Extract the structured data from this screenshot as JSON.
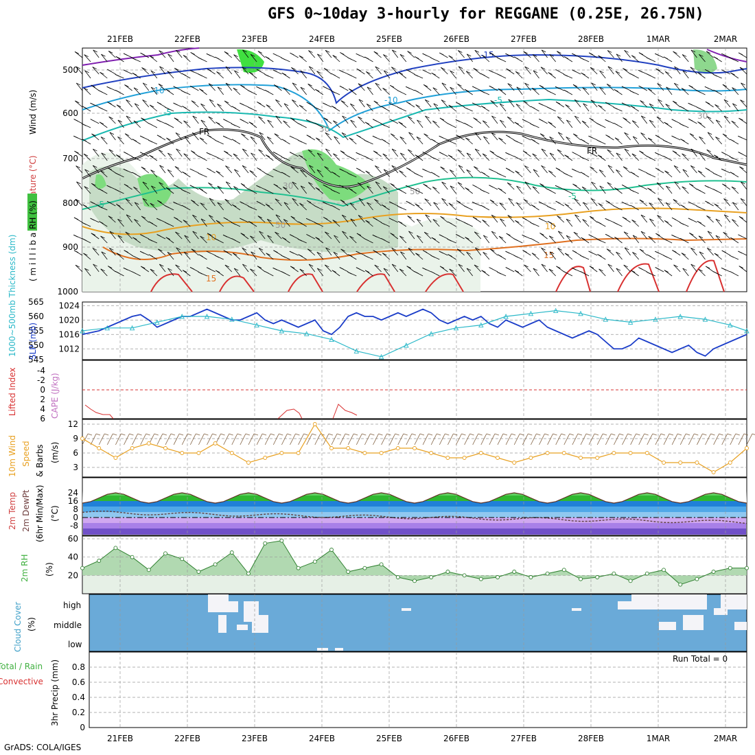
{
  "title": "GFS 0~10day 3-hourly for REGGANE (0.25E, 26.75N)",
  "credit": "GrADS: COLA/IGES",
  "colors": {
    "rh_green": "#7ddc7d",
    "temp_orange": "#e8a020",
    "slp_blue": "#1a3cc8",
    "thickness_cyan": "#2ab8c8",
    "cape_purple": "#c070c0",
    "li_red": "#d83030",
    "wind_orange": "#e8a020",
    "cloud_blue": "#6aaad8",
    "rh2m_green": "#40b040"
  },
  "dates": [
    "21FEB",
    "22FEB",
    "23FEB",
    "24FEB",
    "25FEB",
    "26FEB",
    "27FEB",
    "28FEB",
    "1MAR",
    "2MAR"
  ],
  "panels": {
    "upper": {
      "ylabel_wind": "Wind (m/s)",
      "ylabel_temp": "Temperature (°C)",
      "ylabel_rh": "RH (%)",
      "ylabel_mb": "( m i l l i b a r s )",
      "levels": [
        "500",
        "600",
        "700",
        "800",
        "900",
        "1000"
      ],
      "contour_labels": [
        "-15",
        "-10",
        "-10",
        "-5",
        "-5",
        "FR",
        "FR",
        "-5",
        "-5",
        "5",
        "10",
        "10",
        "15",
        "15",
        "30",
        "30",
        "50",
        "50",
        "30"
      ]
    },
    "slp": {
      "ylabel_thk": "1000~500mb Thickness (dm)",
      "ylabel_slp": "SLP (mb)",
      "thk_ticks": [
        "565",
        "560",
        "555",
        "550",
        "545"
      ],
      "slp_ticks": [
        "1024",
        "1020",
        "1016",
        "1012"
      ]
    },
    "cape": {
      "ylabel_li": "Lifted Index",
      "ylabel_cape": "CAPE (J/kg)",
      "ticks": [
        "-4",
        "-2",
        "0",
        "2",
        "4",
        "6"
      ]
    },
    "wind": {
      "ylabel_a": "10m Wind",
      "ylabel_b": "Speed",
      "ylabel_c": "& Barbs",
      "ylabel_unit": "(m/s)",
      "ticks": [
        "12",
        "9",
        "6",
        "3"
      ]
    },
    "temp": {
      "ylabel_a": "2m Temp",
      "ylabel_b": "2m DewPt",
      "ylabel_c": "(6hr Min/Max)",
      "ylabel_unit": "(°C)",
      "ticks": [
        "24",
        "16",
        "8",
        "0",
        "-8"
      ]
    },
    "rh": {
      "ylabel": "2m RH",
      "ylabel_unit": "(%)",
      "ticks": [
        "60",
        "40",
        "20"
      ]
    },
    "cloud": {
      "ylabel": "Cloud Cover",
      "ylabel_unit": "(%)",
      "levels": [
        "high",
        "middle",
        "low"
      ]
    },
    "precip": {
      "ylabel_a": "Total / Rain",
      "ylabel_b": "Convective",
      "ylabel_c": "3hr Precip (mm)",
      "ticks": [
        "0.8",
        "0.6",
        "0.4",
        "0.2",
        "0"
      ],
      "run_total": "Run Total = 0"
    }
  },
  "chart_data": [
    {
      "type": "line",
      "name": "SLP",
      "x": [
        0,
        1,
        2,
        3,
        4,
        5,
        6,
        7,
        8,
        9,
        10,
        11,
        12,
        13,
        14,
        15,
        16,
        17,
        18,
        19,
        20,
        21,
        22,
        23,
        24,
        25,
        26,
        27,
        28,
        29,
        30,
        31,
        32,
        33,
        34,
        35,
        36,
        37,
        38,
        39,
        40,
        41,
        42,
        43,
        44,
        45,
        46,
        47,
        48,
        49,
        50,
        51,
        52,
        53,
        54,
        55,
        56,
        57,
        58,
        59,
        60,
        61,
        62,
        63,
        64,
        65,
        66,
        67,
        68,
        69,
        70,
        71,
        72,
        73,
        74,
        75,
        76,
        77,
        78,
        79,
        80
      ],
      "values": [
        1016,
        1016.5,
        1017,
        1018,
        1019,
        1020,
        1021,
        1021.5,
        1020,
        1018,
        1019,
        1020,
        1021,
        1021,
        1022,
        1023,
        1022,
        1021,
        1020,
        1020,
        1021,
        1022,
        1020,
        1019,
        1020,
        1019,
        1018,
        1019,
        1020,
        1017,
        1016,
        1018,
        1021,
        1022,
        1021,
        1021,
        1020,
        1021,
        1022,
        1021,
        1022,
        1023,
        1022,
        1020,
        1019,
        1020,
        1021,
        1020,
        1021,
        1019,
        1018,
        1020,
        1019,
        1018,
        1019,
        1020,
        1018,
        1017,
        1016,
        1015,
        1016,
        1017,
        1016,
        1014,
        1012,
        1012,
        1013,
        1015,
        1014,
        1013,
        1012,
        1011,
        1012,
        1013,
        1011,
        1010,
        1012,
        1013,
        1014,
        1015,
        1016
      ],
      "ylim": [
        1009,
        1025
      ]
    },
    {
      "type": "line",
      "name": "1000~500mb Thickness",
      "x": [
        0,
        3,
        6,
        9,
        12,
        15,
        18,
        21,
        24,
        27,
        30,
        33,
        36,
        39,
        42,
        45,
        48,
        51,
        54,
        57,
        60,
        63,
        66,
        69,
        72,
        75,
        78,
        80
      ],
      "values": [
        555,
        556,
        556,
        558,
        560,
        560,
        559,
        557,
        555,
        554,
        552,
        548,
        546,
        550,
        554,
        556,
        557,
        560,
        561,
        562,
        561,
        559,
        558,
        559,
        560,
        559,
        557,
        555
      ],
      "ylim": [
        545,
        565
      ]
    },
    {
      "type": "line",
      "name": "10m Wind Speed",
      "x": [
        0,
        2,
        4,
        6,
        8,
        10,
        12,
        14,
        16,
        18,
        20,
        22,
        24,
        26,
        28,
        30,
        32,
        34,
        36,
        38,
        40,
        42,
        44,
        46,
        48,
        50,
        52,
        54,
        56,
        58,
        60,
        62,
        64,
        66,
        68,
        70,
        72,
        74,
        76,
        78,
        80
      ],
      "values": [
        9,
        7,
        5,
        7,
        8,
        7,
        6,
        6,
        8,
        6,
        4,
        5,
        6,
        6,
        12,
        7,
        7,
        6,
        6,
        7,
        7,
        6,
        5,
        5,
        6,
        5,
        4,
        5,
        6,
        6,
        5,
        5,
        6,
        6,
        6,
        4,
        4,
        4,
        2,
        4,
        7
      ],
      "ylim": [
        1,
        13
      ]
    },
    {
      "type": "area",
      "name": "2m RH",
      "x": [
        0,
        2,
        4,
        6,
        8,
        10,
        12,
        14,
        16,
        18,
        20,
        22,
        24,
        26,
        28,
        30,
        32,
        34,
        36,
        38,
        40,
        42,
        44,
        46,
        48,
        50,
        52,
        54,
        56,
        58,
        60,
        62,
        64,
        66,
        68,
        70,
        72,
        74,
        76,
        78,
        80
      ],
      "values": [
        28,
        36,
        50,
        40,
        26,
        44,
        38,
        24,
        32,
        45,
        22,
        55,
        58,
        28,
        35,
        48,
        24,
        28,
        32,
        18,
        14,
        18,
        24,
        20,
        16,
        18,
        24,
        18,
        22,
        26,
        16,
        18,
        22,
        14,
        22,
        26,
        10,
        16,
        24,
        28,
        28
      ],
      "ylim": [
        0,
        60
      ]
    },
    {
      "type": "bar",
      "name": "3hr Precip",
      "values": [],
      "ylim": [
        0,
        1
      ]
    }
  ]
}
